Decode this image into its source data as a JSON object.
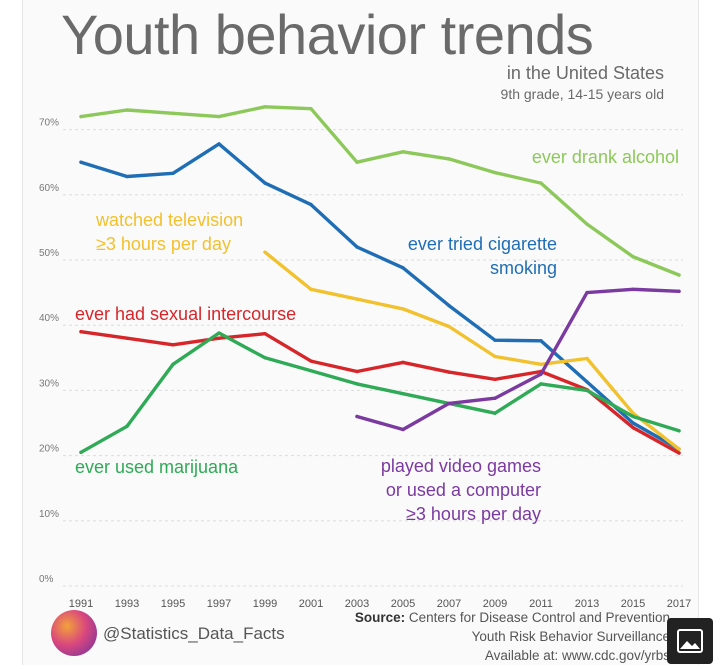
{
  "title": "Youth behavior trends",
  "subtitle": "in the United States",
  "subtitle2": "9th grade, 14-15 years old",
  "source_label": "Source:",
  "source_text": "Centers for Disease Control and Prevention",
  "source_line2": "Youth Risk Behavior Surveillance",
  "source_line3": "Available at: www.cdc.gov/yrbs",
  "credit": "@Statistics_Data_Facts",
  "expand_icon": "image-icon",
  "chart_data": {
    "type": "line",
    "title": "Youth behavior trends",
    "xlabel": "",
    "ylabel": "",
    "ylim": [
      0,
      70
    ],
    "yticks": [
      0,
      10,
      20,
      30,
      40,
      50,
      60,
      70
    ],
    "ytick_labels": [
      "0%",
      "10%",
      "20%",
      "30%",
      "40%",
      "50%",
      "60%",
      "70%"
    ],
    "x": [
      1991,
      1993,
      1995,
      1997,
      1999,
      2001,
      2003,
      2005,
      2007,
      2009,
      2011,
      2013,
      2015,
      2017
    ],
    "series": [
      {
        "name": "ever drank alcohol",
        "color": "#8dc85a",
        "label": [
          "ever drank alcohol"
        ],
        "values": [
          72,
          73,
          72.5,
          72,
          73.5,
          73.2,
          65,
          66.6,
          65.5,
          63.4,
          61.8,
          55.5,
          50.5,
          47.7
        ]
      },
      {
        "name": "ever tried cigarette smoking",
        "color": "#1f6eb5",
        "label": [
          "ever tried cigarette",
          "smoking"
        ],
        "values": [
          65,
          62.8,
          63.3,
          67.8,
          61.8,
          58.5,
          52,
          48.8,
          43,
          37.7,
          37.6,
          31.3,
          25,
          21
        ]
      },
      {
        "name": "watched television ≥3 hours per day",
        "color": "#f2c12e",
        "label": [
          "watched television",
          "≥3 hours per day"
        ],
        "values": [
          null,
          null,
          null,
          null,
          51.2,
          45.5,
          44,
          42.5,
          39.8,
          35.2,
          34,
          34.9,
          26.5,
          21
        ]
      },
      {
        "name": "ever had sexual intercourse",
        "color": "#d7262a",
        "label": [
          "ever had sexual intercourse"
        ],
        "values": [
          39,
          38,
          37,
          38,
          38.7,
          34.5,
          32.9,
          34.3,
          32.8,
          31.7,
          32.9,
          30.1,
          24.3,
          20.4
        ]
      },
      {
        "name": "ever used marijuana",
        "color": "#2faa57",
        "label": [
          "ever used marijuana"
        ],
        "values": [
          20.5,
          24.5,
          34,
          38.8,
          35,
          33,
          31,
          29.5,
          28,
          26.5,
          31,
          30,
          26,
          23.8
        ]
      },
      {
        "name": "played video games or used a computer ≥3 hours per day",
        "color": "#7b3aa0",
        "label": [
          "played video games",
          "or used a computer",
          "≥3 hours per day"
        ],
        "values": [
          null,
          null,
          null,
          null,
          null,
          null,
          26,
          24,
          28,
          28.8,
          32.5,
          45,
          45.5,
          45.2
        ]
      }
    ]
  }
}
